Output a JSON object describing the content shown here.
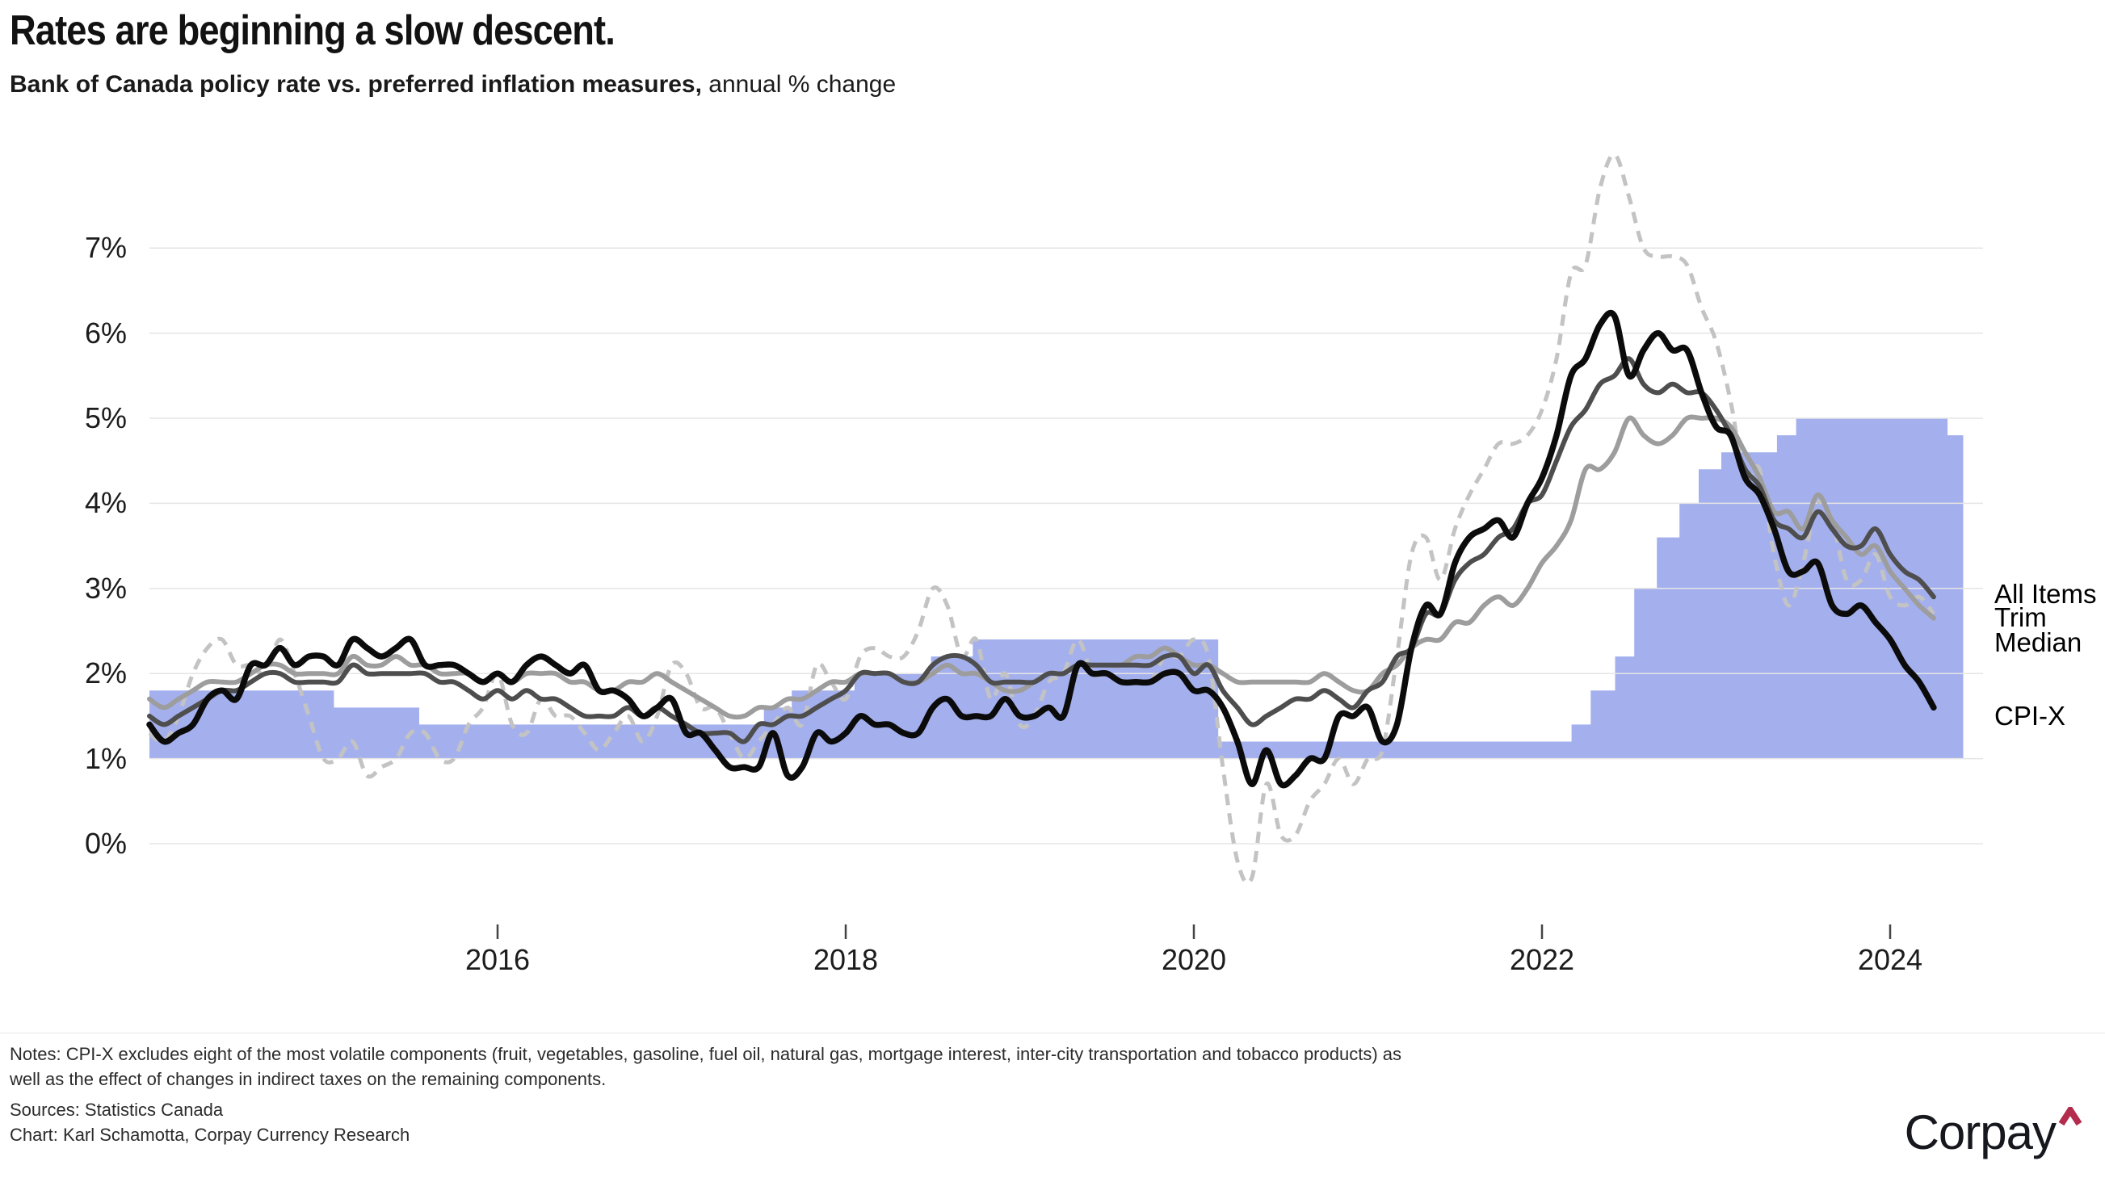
{
  "header": {
    "title": "Rates are beginning a slow descent.",
    "subtitle_bold": "Bank of Canada policy rate vs. preferred inflation measures,",
    "subtitle_light": " annual % change"
  },
  "chart_data": {
    "type": "line",
    "title": "Rates are beginning a slow descent.",
    "subtitle": "Bank of Canada policy rate vs. preferred inflation measures, annual % change",
    "grid": true,
    "legend_position": "right-edge-labels",
    "x_axis": {
      "min": 2014,
      "max": 2024.6,
      "ticks": [
        {
          "year": 2016,
          "label": "2016"
        },
        {
          "year": 2018,
          "label": "2018"
        },
        {
          "year": 2020,
          "label": "2020"
        },
        {
          "year": 2022,
          "label": "2022"
        },
        {
          "year": 2024,
          "label": "2024"
        }
      ]
    },
    "y_axis": {
      "min": 0,
      "max": 7,
      "unit": "%",
      "tick_values": [
        0,
        1,
        2,
        3,
        4,
        5,
        6,
        7
      ],
      "tick_labels": [
        "0%",
        "1%",
        "2%",
        "3%",
        "4%",
        "5%",
        "6%",
        "7%"
      ]
    },
    "area_series": {
      "name": "Bank of Canada policy rate",
      "unit": "% per annum",
      "color": "#a4b0ee",
      "steps": [
        [
          2014.0,
          1.0
        ],
        [
          2015.06,
          0.75
        ],
        [
          2015.55,
          0.5
        ],
        [
          2017.53,
          0.75
        ],
        [
          2017.69,
          1.0
        ],
        [
          2018.05,
          1.25
        ],
        [
          2018.49,
          1.5
        ],
        [
          2018.73,
          1.75
        ],
        [
          2020.14,
          0.25
        ],
        [
          2022.17,
          0.5
        ],
        [
          2022.28,
          1.0
        ],
        [
          2022.42,
          1.5
        ],
        [
          2022.53,
          2.5
        ],
        [
          2022.66,
          3.25
        ],
        [
          2022.79,
          3.75
        ],
        [
          2022.9,
          4.25
        ],
        [
          2023.03,
          4.5
        ],
        [
          2023.35,
          4.75
        ],
        [
          2023.46,
          5.0
        ],
        [
          2024.33,
          4.75
        ]
      ],
      "end_year": 2024.42,
      "render": {
        "value_scale": 0.8,
        "value_offset": 1.0,
        "baseline": 0
      }
    },
    "series": [
      {
        "name": "All Items",
        "style": "dashed",
        "color": "#c3c3c3",
        "width": 5,
        "start_year": 2014,
        "cadence": "monthly",
        "values": [
          1.3,
          1.2,
          1.5,
          2.0,
          2.3,
          2.4,
          2.1,
          2.1,
          2.0,
          2.4,
          2.0,
          1.5,
          1.0,
          1.0,
          1.2,
          0.8,
          0.9,
          1.0,
          1.3,
          1.3,
          1.0,
          1.0,
          1.4,
          1.6,
          2.0,
          1.4,
          1.3,
          1.7,
          1.5,
          1.5,
          1.3,
          1.1,
          1.3,
          1.5,
          1.2,
          1.5,
          2.1,
          2.0,
          1.6,
          1.6,
          1.3,
          1.0,
          1.2,
          1.4,
          1.6,
          1.4,
          2.1,
          1.9,
          1.7,
          2.2,
          2.3,
          2.2,
          2.2,
          2.5,
          3.0,
          2.8,
          2.2,
          2.4,
          1.7,
          2.0,
          1.4,
          1.5,
          1.9,
          2.0,
          2.4,
          2.0,
          2.0,
          1.9,
          1.9,
          1.9,
          2.2,
          2.2,
          2.4,
          2.2,
          0.9,
          -0.2,
          -0.4,
          0.7,
          0.1,
          0.1,
          0.5,
          0.7,
          1.0,
          0.7,
          1.0,
          1.1,
          2.2,
          3.4,
          3.6,
          3.1,
          3.7,
          4.1,
          4.4,
          4.7,
          4.7,
          4.8,
          5.1,
          5.7,
          6.7,
          6.8,
          7.7,
          8.1,
          7.6,
          7.0,
          6.9,
          6.9,
          6.8,
          6.3,
          5.9,
          5.2,
          4.3,
          4.4,
          3.4,
          2.8,
          3.3,
          4.0,
          3.8,
          3.1,
          3.1,
          3.4,
          2.9,
          2.8,
          2.9,
          2.7
        ]
      },
      {
        "name": "Trim",
        "style": "solid",
        "color": "#4e4e4e",
        "width": 6,
        "start_year": 2014,
        "cadence": "monthly",
        "values": [
          1.5,
          1.4,
          1.5,
          1.6,
          1.7,
          1.8,
          1.8,
          1.9,
          2.0,
          2.0,
          1.9,
          1.9,
          1.9,
          1.9,
          2.1,
          2.0,
          2.0,
          2.0,
          2.0,
          2.0,
          1.9,
          1.9,
          1.8,
          1.7,
          1.8,
          1.7,
          1.8,
          1.7,
          1.7,
          1.6,
          1.5,
          1.5,
          1.5,
          1.6,
          1.5,
          1.6,
          1.5,
          1.4,
          1.3,
          1.3,
          1.3,
          1.2,
          1.4,
          1.4,
          1.5,
          1.5,
          1.6,
          1.7,
          1.8,
          2.0,
          2.0,
          2.0,
          1.9,
          1.9,
          2.1,
          2.2,
          2.2,
          2.1,
          1.9,
          1.9,
          1.9,
          1.9,
          2.0,
          2.0,
          2.1,
          2.1,
          2.1,
          2.1,
          2.1,
          2.1,
          2.2,
          2.2,
          2.0,
          2.1,
          1.8,
          1.6,
          1.4,
          1.5,
          1.6,
          1.7,
          1.7,
          1.8,
          1.7,
          1.6,
          1.8,
          1.9,
          2.2,
          2.3,
          2.7,
          2.7,
          3.1,
          3.3,
          3.4,
          3.6,
          3.7,
          4.0,
          4.1,
          4.5,
          4.9,
          5.1,
          5.4,
          5.5,
          5.7,
          5.4,
          5.3,
          5.4,
          5.3,
          5.3,
          5.1,
          4.8,
          4.4,
          4.2,
          3.8,
          3.7,
          3.6,
          3.9,
          3.7,
          3.5,
          3.5,
          3.7,
          3.4,
          3.2,
          3.1,
          2.9
        ]
      },
      {
        "name": "Median",
        "style": "solid",
        "color": "#9d9d9d",
        "width": 6,
        "start_year": 2014,
        "cadence": "monthly",
        "values": [
          1.7,
          1.6,
          1.7,
          1.8,
          1.9,
          1.9,
          1.9,
          2.0,
          2.1,
          2.1,
          2.0,
          2.0,
          2.0,
          2.0,
          2.2,
          2.1,
          2.1,
          2.2,
          2.1,
          2.1,
          2.0,
          2.0,
          2.0,
          1.9,
          2.0,
          1.9,
          2.0,
          2.0,
          2.0,
          1.9,
          1.9,
          1.8,
          1.8,
          1.9,
          1.9,
          2.0,
          1.9,
          1.8,
          1.7,
          1.6,
          1.5,
          1.5,
          1.6,
          1.6,
          1.7,
          1.7,
          1.8,
          1.9,
          1.9,
          2.0,
          2.0,
          2.0,
          1.9,
          1.9,
          2.0,
          2.1,
          2.0,
          2.0,
          1.9,
          1.8,
          1.8,
          1.9,
          2.0,
          2.0,
          2.1,
          2.1,
          2.1,
          2.1,
          2.2,
          2.2,
          2.3,
          2.2,
          2.1,
          2.1,
          2.0,
          1.9,
          1.9,
          1.9,
          1.9,
          1.9,
          1.9,
          2.0,
          1.9,
          1.8,
          1.8,
          2.0,
          2.1,
          2.3,
          2.4,
          2.4,
          2.6,
          2.6,
          2.8,
          2.9,
          2.8,
          3.0,
          3.3,
          3.5,
          3.8,
          4.4,
          4.4,
          4.6,
          5.0,
          4.8,
          4.7,
          4.8,
          5.0,
          5.0,
          5.0,
          4.9,
          4.6,
          4.3,
          3.9,
          3.9,
          3.7,
          4.1,
          3.8,
          3.6,
          3.4,
          3.5,
          3.2,
          3.0,
          2.8,
          2.65
        ]
      },
      {
        "name": "CPI-X",
        "style": "solid",
        "color": "#0b0b0b",
        "width": 7.5,
        "start_year": 2014,
        "cadence": "monthly",
        "values": [
          1.4,
          1.2,
          1.3,
          1.4,
          1.7,
          1.8,
          1.7,
          2.1,
          2.1,
          2.3,
          2.1,
          2.2,
          2.2,
          2.1,
          2.4,
          2.3,
          2.2,
          2.3,
          2.4,
          2.1,
          2.1,
          2.1,
          2.0,
          1.9,
          2.0,
          1.9,
          2.1,
          2.2,
          2.1,
          2.0,
          2.1,
          1.8,
          1.8,
          1.7,
          1.5,
          1.6,
          1.7,
          1.3,
          1.3,
          1.1,
          0.9,
          0.9,
          0.9,
          1.3,
          0.8,
          0.9,
          1.3,
          1.2,
          1.3,
          1.5,
          1.4,
          1.4,
          1.3,
          1.3,
          1.6,
          1.7,
          1.5,
          1.5,
          1.5,
          1.7,
          1.5,
          1.5,
          1.6,
          1.5,
          2.1,
          2.0,
          2.0,
          1.9,
          1.9,
          1.9,
          2.0,
          2.0,
          1.8,
          1.8,
          1.6,
          1.2,
          0.7,
          1.1,
          0.7,
          0.8,
          1.0,
          1.0,
          1.5,
          1.5,
          1.6,
          1.2,
          1.4,
          2.3,
          2.8,
          2.7,
          3.3,
          3.6,
          3.7,
          3.8,
          3.6,
          4.0,
          4.3,
          4.8,
          5.5,
          5.7,
          6.1,
          6.2,
          5.5,
          5.8,
          6.0,
          5.8,
          5.8,
          5.3,
          4.9,
          4.8,
          4.3,
          4.1,
          3.7,
          3.2,
          3.2,
          3.3,
          2.8,
          2.7,
          2.8,
          2.6,
          2.4,
          2.1,
          1.9,
          1.6
        ]
      }
    ]
  },
  "footer": {
    "notes": "Notes: CPI-X excludes eight of the most volatile components (fruit, vegetables, gasoline, fuel oil, natural gas, mortgage interest, inter-city transportation and tobacco products) as well as the effect of changes in indirect taxes on the remaining components.",
    "sources": "Sources: Statistics Canada",
    "credit": "Chart: Karl Schamotta, Corpay Currency Research"
  },
  "logo": {
    "text": "Corpay"
  },
  "colors": {
    "background": "#ffffff",
    "area": "#a4b0ee",
    "grid": "#e5e5e5",
    "axis_text": "#1c1c1c",
    "all_items": "#c3c3c3",
    "trim": "#4e4e4e",
    "median": "#9d9d9d",
    "cpix": "#0b0b0b",
    "tick_mark": "#444444",
    "logo_text": "#16181d",
    "logo_caret": "#b32b4d"
  }
}
